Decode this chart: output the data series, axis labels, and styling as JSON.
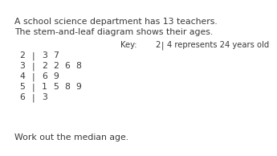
{
  "title_line1": "A school science department has 13 teachers.",
  "title_line2": "The stem-and-leaf diagram shows their ages.",
  "key_label": "Key:",
  "key_stem": "2",
  "key_sep": "|",
  "key_rest": "4 represents 24 years old",
  "stems": [
    2,
    3,
    4,
    5,
    6
  ],
  "leaves": [
    [
      3,
      7
    ],
    [
      2,
      2,
      6,
      8
    ],
    [
      6,
      9
    ],
    [
      1,
      5,
      8,
      9
    ],
    [
      3
    ]
  ],
  "footer": "Work out the median age.",
  "bg_color": "#ffffff",
  "text_color": "#3a3a3a",
  "font_size_title": 7.8,
  "font_size_table": 7.8,
  "font_size_key": 7.2,
  "font_size_footer": 7.8
}
